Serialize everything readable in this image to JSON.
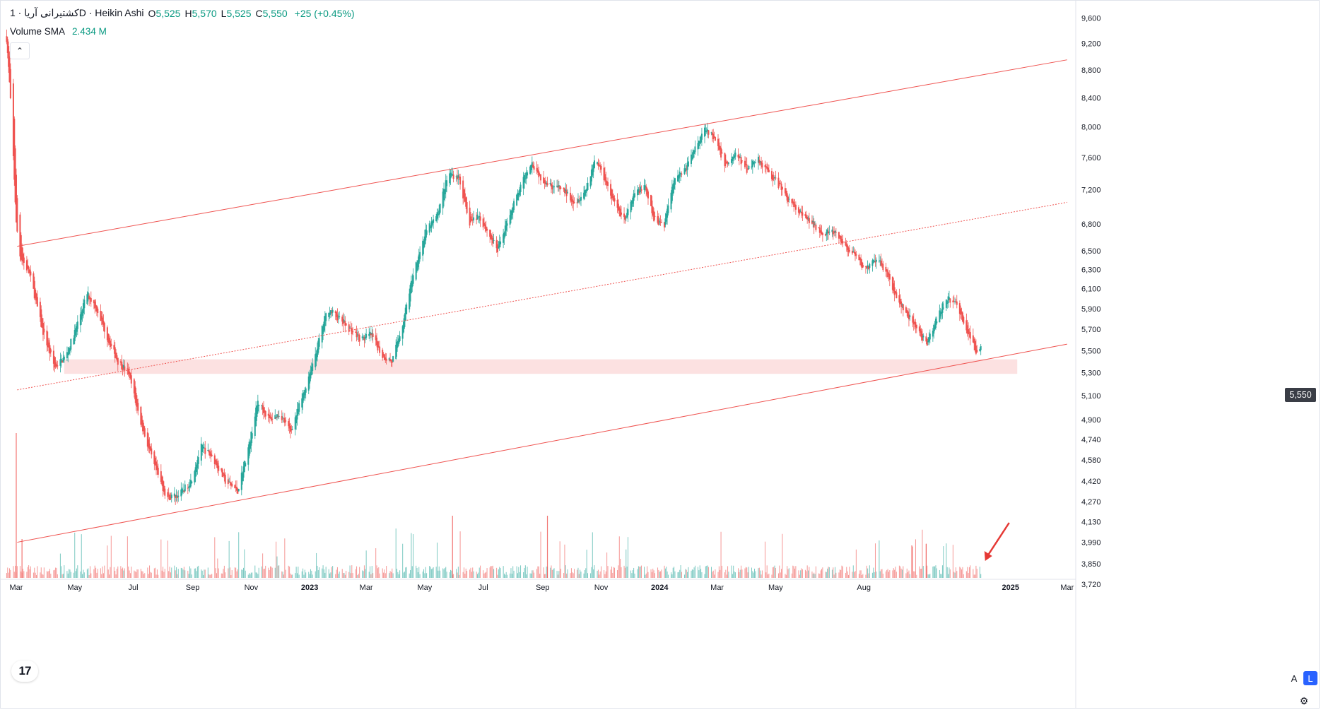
{
  "legend": {
    "symbol": "کشتیرانی آریا · 1D · Heikin Ashi",
    "open_label": "O",
    "open_value": "5,525",
    "high_label": "H",
    "high_value": "5,570",
    "low_label": "L",
    "low_value": "5,525",
    "close_label": "C",
    "close_value": "5,550",
    "change": "+25 (+0.45%)"
  },
  "volume_legend": {
    "label": "Volume SMA",
    "value": "2.434 M"
  },
  "last_price_tag": "5,550",
  "buttons": {
    "collapse": "⌃",
    "auto_scale": "A",
    "log_scale": "L",
    "settings": "⚙"
  },
  "logo_text": "17",
  "colors": {
    "up": "#26a69a",
    "down": "#ef5350",
    "channel": "#ef5350",
    "zone": "#fcdcdc",
    "arrow": "#e53935"
  },
  "chart_data": {
    "type": "candlestick",
    "chart_style": "Heikin Ashi",
    "interval": "1D",
    "price_scale": "log",
    "ylim": [
      3750,
      9800
    ],
    "y_ticks": [
      "9,600",
      "9,200",
      "8,800",
      "8,400",
      "8,000",
      "7,600",
      "7,200",
      "6,800",
      "6,500",
      "6,300",
      "6,100",
      "5,900",
      "5,700",
      "5,500",
      "5,300",
      "5,100",
      "4,900",
      "4,740",
      "4,580",
      "4,420",
      "4,270",
      "4,130",
      "3,990",
      "3,850",
      "3,720"
    ],
    "x_ticks": [
      "Mar",
      "May",
      "Jul",
      "Sep",
      "Nov",
      "2023",
      "Mar",
      "May",
      "Jul",
      "Sep",
      "Nov",
      "2024",
      "Mar",
      "May",
      "Aug",
      "2025",
      "Mar"
    ],
    "xlim": [
      "2022-02-15",
      "2025-03-10"
    ],
    "price_path": [
      [
        "2022-02-18",
        9500
      ],
      [
        "2022-02-22",
        8600
      ],
      [
        "2022-02-26",
        7600
      ],
      [
        "2022-03-01",
        6800
      ],
      [
        "2022-03-05",
        6450
      ],
      [
        "2022-03-15",
        6250
      ],
      [
        "2022-03-28",
        5700
      ],
      [
        "2022-04-10",
        5350
      ],
      [
        "2022-04-22",
        5450
      ],
      [
        "2022-05-02",
        5700
      ],
      [
        "2022-05-14",
        6050
      ],
      [
        "2022-05-24",
        5900
      ],
      [
        "2022-06-05",
        5600
      ],
      [
        "2022-06-15",
        5400
      ],
      [
        "2022-06-26",
        5300
      ],
      [
        "2022-07-08",
        4900
      ],
      [
        "2022-07-22",
        4550
      ],
      [
        "2022-08-05",
        4300
      ],
      [
        "2022-08-18",
        4320
      ],
      [
        "2022-08-30",
        4420
      ],
      [
        "2022-09-10",
        4680
      ],
      [
        "2022-09-22",
        4600
      ],
      [
        "2022-10-05",
        4420
      ],
      [
        "2022-10-18",
        4350
      ],
      [
        "2022-10-30",
        4700
      ],
      [
        "2022-11-08",
        5050
      ],
      [
        "2022-11-20",
        4900
      ],
      [
        "2022-12-01",
        4950
      ],
      [
        "2022-12-12",
        4800
      ],
      [
        "2022-12-25",
        5100
      ],
      [
        "2023-01-08",
        5500
      ],
      [
        "2023-01-20",
        5900
      ],
      [
        "2023-02-01",
        5800
      ],
      [
        "2023-02-12",
        5700
      ],
      [
        "2023-02-24",
        5600
      ],
      [
        "2023-03-06",
        5650
      ],
      [
        "2023-03-18",
        5450
      ],
      [
        "2023-03-28",
        5400
      ],
      [
        "2023-04-08",
        5750
      ],
      [
        "2023-04-20",
        6300
      ],
      [
        "2023-05-02",
        6700
      ],
      [
        "2023-05-14",
        6900
      ],
      [
        "2023-05-26",
        7400
      ],
      [
        "2023-06-06",
        7350
      ],
      [
        "2023-06-16",
        6800
      ],
      [
        "2023-06-26",
        6900
      ],
      [
        "2023-07-06",
        6700
      ],
      [
        "2023-07-16",
        6500
      ],
      [
        "2023-07-28",
        6900
      ],
      [
        "2023-08-08",
        7200
      ],
      [
        "2023-08-20",
        7550
      ],
      [
        "2023-08-30",
        7350
      ],
      [
        "2023-09-10",
        7250
      ],
      [
        "2023-09-22",
        7200
      ],
      [
        "2023-10-05",
        7050
      ],
      [
        "2023-10-16",
        7200
      ],
      [
        "2023-10-26",
        7600
      ],
      [
        "2023-11-06",
        7300
      ],
      [
        "2023-11-16",
        7000
      ],
      [
        "2023-11-26",
        6850
      ],
      [
        "2023-12-06",
        7150
      ],
      [
        "2023-12-16",
        7250
      ],
      [
        "2023-12-26",
        6850
      ],
      [
        "2024-01-06",
        6800
      ],
      [
        "2024-01-16",
        7350
      ],
      [
        "2024-01-28",
        7450
      ],
      [
        "2024-02-08",
        7750
      ],
      [
        "2024-02-18",
        8000
      ],
      [
        "2024-02-28",
        7800
      ],
      [
        "2024-03-10",
        7500
      ],
      [
        "2024-03-20",
        7650
      ],
      [
        "2024-04-01",
        7450
      ],
      [
        "2024-04-12",
        7600
      ],
      [
        "2024-04-24",
        7400
      ],
      [
        "2024-05-05",
        7250
      ],
      [
        "2024-05-16",
        7050
      ],
      [
        "2024-05-28",
        6900
      ],
      [
        "2024-06-08",
        6800
      ],
      [
        "2024-06-20",
        6700
      ],
      [
        "2024-07-01",
        6700
      ],
      [
        "2024-07-12",
        6550
      ],
      [
        "2024-07-22",
        6450
      ],
      [
        "2024-08-02",
        6300
      ],
      [
        "2024-08-14",
        6400
      ],
      [
        "2024-08-24",
        6300
      ],
      [
        "2024-09-04",
        6000
      ],
      [
        "2024-09-14",
        5850
      ],
      [
        "2024-09-26",
        5700
      ],
      [
        "2024-10-06",
        5550
      ],
      [
        "2024-10-16",
        5800
      ],
      [
        "2024-10-26",
        6000
      ],
      [
        "2024-11-06",
        5950
      ],
      [
        "2024-11-16",
        5700
      ],
      [
        "2024-11-26",
        5500
      ],
      [
        "2024-12-02",
        5550
      ]
    ],
    "annotations": {
      "channel_upper": [
        [
          "2022-03-02",
          6550
        ],
        [
          "2025-03-01",
          8950
        ]
      ],
      "channel_lower": [
        [
          "2022-03-02",
          3990
        ],
        [
          "2025-03-01",
          5560
        ]
      ],
      "channel_mid": [
        [
          "2022-03-02",
          5150
        ],
        [
          "2025-03-01",
          7050
        ]
      ],
      "support_zone": {
        "from": "2022-04-20",
        "to": "2025-01-08",
        "low": 5290,
        "high": 5420
      },
      "arrow_to": "2024-12-04"
    },
    "volume": {
      "label": "Volume SMA",
      "last": "2.434 M"
    },
    "grid": false
  }
}
